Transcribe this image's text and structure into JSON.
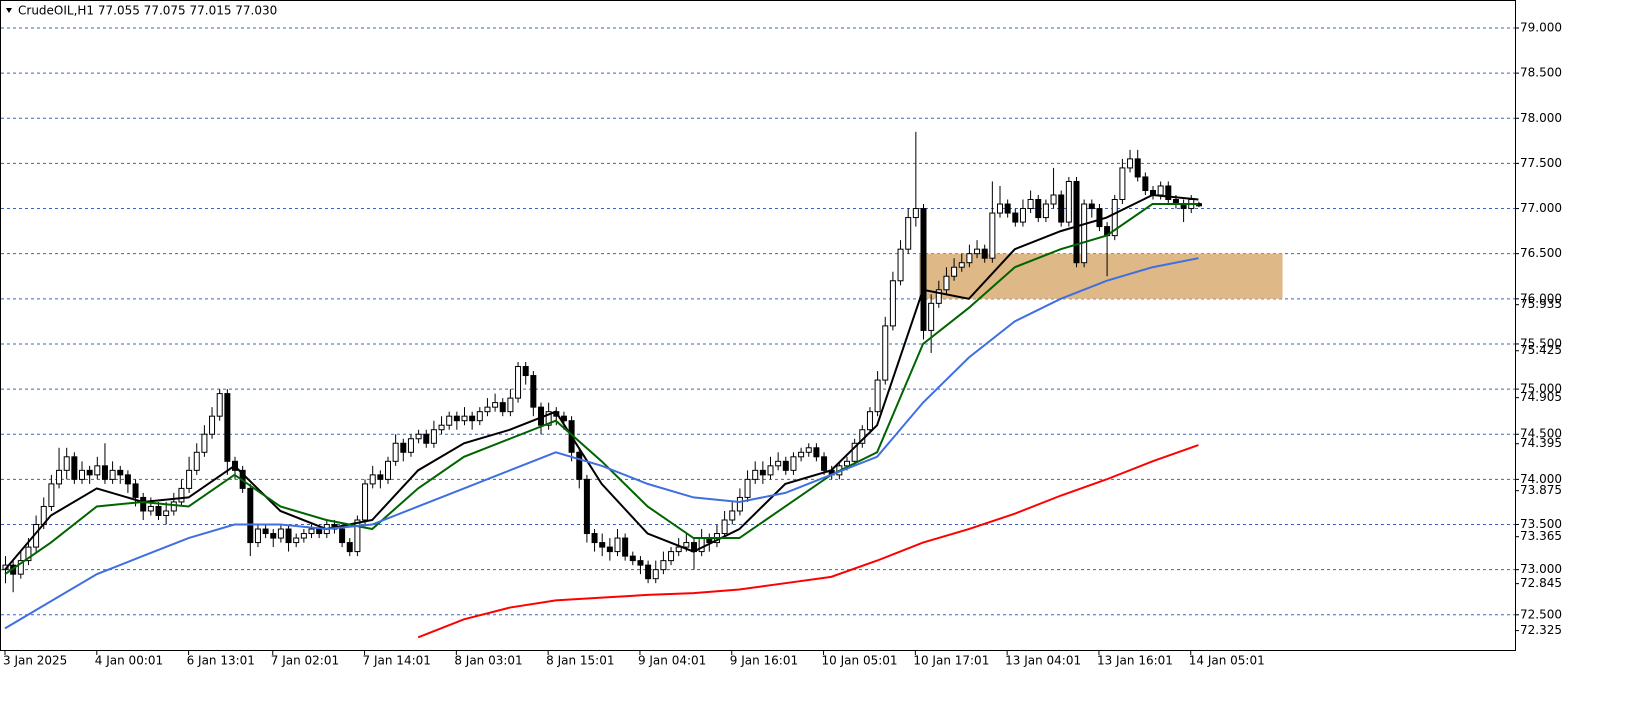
{
  "chart_data": {
    "type": "candlestick",
    "title": "CrudeOIL,H1  77.055 77.075 77.015 77.030",
    "ylim": [
      72.11,
      79.31
    ],
    "xlim": [
      0,
      197
    ],
    "yticks": [
      {
        "value": 72.5,
        "label": "72.500"
      },
      {
        "value": 73,
        "label": "73.000"
      },
      {
        "value": 73.5,
        "label": "73.500"
      },
      {
        "value": 74,
        "label": "74.000"
      },
      {
        "value": 74.5,
        "label": "74.500"
      },
      {
        "value": 75,
        "label": "75.000"
      },
      {
        "value": 75.5,
        "label": "75.500"
      },
      {
        "value": 76,
        "label": "76.000"
      },
      {
        "value": 76.5,
        "label": "76.500"
      },
      {
        "value": 77,
        "label": "77.000"
      },
      {
        "value": 77.5,
        "label": "77.500"
      },
      {
        "value": 78,
        "label": "78.000"
      },
      {
        "value": 78.5,
        "label": "78.500"
      },
      {
        "value": 79,
        "label": "79.000"
      }
    ],
    "yticks_extra": [
      72.325,
      72.845,
      73.365,
      73.875,
      74.395,
      74.905,
      75.425,
      75.935
    ],
    "grid": true,
    "xticks": [
      {
        "value": 0,
        "label": "3 Jan 2025"
      },
      {
        "value": 12,
        "label": "4 Jan 00:01"
      },
      {
        "value": 24,
        "label": "6 Jan 13:01"
      },
      {
        "value": 35,
        "label": "7 Jan 02:01"
      },
      {
        "value": 47,
        "label": "7 Jan 14:01"
      },
      {
        "value": 59,
        "label": "8 Jan 03:01"
      },
      {
        "value": 71,
        "label": "8 Jan 15:01"
      },
      {
        "value": 83,
        "label": "9 Jan 04:01"
      },
      {
        "value": 95,
        "label": "9 Jan 16:01"
      },
      {
        "value": 107,
        "label": "10 Jan 05:01"
      },
      {
        "value": 119,
        "label": "10 Jan 17:01"
      },
      {
        "value": 131,
        "label": "13 Jan 04:01"
      },
      {
        "value": 143,
        "label": "13 Jan 16:01"
      },
      {
        "value": 155,
        "label": "14 Jan 05:01"
      }
    ],
    "zone": {
      "x": [
        119.5,
        167
      ],
      "y": [
        76.0,
        76.5
      ],
      "color": "#deb887"
    },
    "ohlc": [
      [
        73.0,
        73.15,
        72.85,
        73.05
      ],
      [
        73.05,
        73.1,
        72.75,
        72.95
      ],
      [
        72.95,
        73.2,
        72.9,
        73.1
      ],
      [
        73.1,
        73.35,
        73.05,
        73.25
      ],
      [
        73.25,
        73.6,
        73.2,
        73.5
      ],
      [
        73.5,
        73.8,
        73.45,
        73.7
      ],
      [
        73.7,
        74.05,
        73.65,
        73.95
      ],
      [
        73.95,
        74.35,
        73.9,
        74.1
      ],
      [
        74.1,
        74.35,
        74.0,
        74.25
      ],
      [
        74.25,
        74.3,
        73.95,
        74.0
      ],
      [
        74.0,
        74.2,
        73.95,
        74.1
      ],
      [
        74.1,
        74.15,
        73.95,
        74.05
      ],
      [
        74.05,
        74.25,
        74.0,
        74.15
      ],
      [
        74.15,
        74.4,
        73.95,
        74.0
      ],
      [
        74.0,
        74.2,
        73.95,
        74.1
      ],
      [
        74.1,
        74.15,
        73.95,
        74.05
      ],
      [
        74.05,
        74.1,
        73.85,
        73.95
      ],
      [
        73.95,
        74.0,
        73.7,
        73.8
      ],
      [
        73.8,
        73.85,
        73.55,
        73.65
      ],
      [
        73.65,
        73.8,
        73.6,
        73.7
      ],
      [
        73.7,
        73.75,
        73.55,
        73.6
      ],
      [
        73.6,
        73.75,
        73.5,
        73.65
      ],
      [
        73.65,
        73.85,
        73.6,
        73.75
      ],
      [
        73.75,
        74.0,
        73.7,
        73.9
      ],
      [
        73.9,
        74.25,
        73.85,
        74.1
      ],
      [
        74.1,
        74.4,
        74.05,
        74.3
      ],
      [
        74.3,
        74.6,
        74.25,
        74.5
      ],
      [
        74.5,
        74.8,
        74.45,
        74.7
      ],
      [
        74.7,
        75.0,
        74.65,
        74.95
      ],
      [
        74.95,
        75.0,
        74.05,
        74.2
      ],
      [
        74.2,
        74.25,
        74.0,
        74.1
      ],
      [
        74.1,
        74.15,
        73.85,
        73.9
      ],
      [
        73.9,
        73.95,
        73.15,
        73.3
      ],
      [
        73.3,
        73.5,
        73.25,
        73.45
      ],
      [
        73.45,
        73.5,
        73.35,
        73.4
      ],
      [
        73.4,
        73.45,
        73.25,
        73.35
      ],
      [
        73.35,
        73.5,
        73.3,
        73.45
      ],
      [
        73.45,
        73.5,
        73.2,
        73.3
      ],
      [
        73.3,
        73.4,
        73.25,
        73.35
      ],
      [
        73.35,
        73.45,
        73.3,
        73.4
      ],
      [
        73.4,
        73.5,
        73.35,
        73.45
      ],
      [
        73.45,
        73.5,
        73.35,
        73.4
      ],
      [
        73.4,
        73.55,
        73.35,
        73.5
      ],
      [
        73.5,
        73.55,
        73.4,
        73.45
      ],
      [
        73.45,
        73.5,
        73.25,
        73.3
      ],
      [
        73.3,
        73.35,
        73.15,
        73.2
      ],
      [
        73.2,
        73.6,
        73.15,
        73.55
      ],
      [
        73.55,
        74.0,
        73.5,
        73.95
      ],
      [
        73.95,
        74.15,
        73.9,
        74.05
      ],
      [
        74.05,
        74.1,
        73.9,
        74.0
      ],
      [
        74.0,
        74.25,
        73.95,
        74.2
      ],
      [
        74.2,
        74.5,
        74.15,
        74.4
      ],
      [
        74.4,
        74.45,
        74.2,
        74.3
      ],
      [
        74.3,
        74.5,
        74.25,
        74.45
      ],
      [
        74.45,
        74.55,
        74.4,
        74.5
      ],
      [
        74.5,
        74.55,
        74.35,
        74.4
      ],
      [
        74.4,
        74.65,
        74.35,
        74.55
      ],
      [
        74.55,
        74.7,
        74.5,
        74.6
      ],
      [
        74.6,
        74.75,
        74.55,
        74.7
      ],
      [
        74.7,
        74.75,
        74.55,
        74.65
      ],
      [
        74.65,
        74.8,
        74.6,
        74.7
      ],
      [
        74.7,
        74.75,
        74.55,
        74.65
      ],
      [
        74.65,
        74.8,
        74.6,
        74.75
      ],
      [
        74.75,
        74.9,
        74.7,
        74.8
      ],
      [
        74.8,
        74.95,
        74.75,
        74.85
      ],
      [
        74.85,
        74.9,
        74.7,
        74.75
      ],
      [
        74.75,
        75.0,
        74.7,
        74.9
      ],
      [
        74.9,
        75.3,
        74.85,
        75.25
      ],
      [
        75.25,
        75.3,
        75.05,
        75.15
      ],
      [
        75.15,
        75.2,
        74.7,
        74.8
      ],
      [
        74.8,
        74.85,
        74.5,
        74.6
      ],
      [
        74.6,
        74.85,
        74.55,
        74.75
      ],
      [
        74.75,
        74.8,
        74.6,
        74.7
      ],
      [
        74.7,
        74.75,
        74.55,
        74.65
      ],
      [
        74.65,
        74.7,
        74.2,
        74.3
      ],
      [
        74.3,
        74.35,
        73.9,
        74.0
      ],
      [
        74.0,
        74.05,
        73.3,
        73.4
      ],
      [
        73.4,
        73.45,
        73.2,
        73.3
      ],
      [
        73.3,
        73.4,
        73.15,
        73.25
      ],
      [
        73.25,
        73.35,
        73.1,
        73.2
      ],
      [
        73.2,
        73.45,
        73.15,
        73.35
      ],
      [
        73.35,
        73.4,
        73.1,
        73.15
      ],
      [
        73.15,
        73.2,
        73.05,
        73.1
      ],
      [
        73.1,
        73.15,
        72.95,
        73.05
      ],
      [
        73.05,
        73.1,
        72.85,
        72.9
      ],
      [
        72.9,
        73.1,
        72.85,
        73.0
      ],
      [
        73.0,
        73.2,
        72.95,
        73.1
      ],
      [
        73.1,
        73.25,
        73.05,
        73.2
      ],
      [
        73.2,
        73.35,
        73.15,
        73.25
      ],
      [
        73.25,
        73.4,
        73.2,
        73.3
      ],
      [
        73.3,
        73.35,
        73.0,
        73.2
      ],
      [
        73.2,
        73.45,
        73.15,
        73.35
      ],
      [
        73.35,
        73.4,
        73.2,
        73.3
      ],
      [
        73.3,
        73.5,
        73.25,
        73.4
      ],
      [
        73.4,
        73.65,
        73.35,
        73.55
      ],
      [
        73.55,
        73.75,
        73.5,
        73.65
      ],
      [
        73.65,
        73.9,
        73.6,
        73.8
      ],
      [
        73.8,
        74.1,
        73.75,
        74.0
      ],
      [
        74.0,
        74.2,
        73.95,
        74.1
      ],
      [
        74.1,
        74.2,
        73.95,
        74.05
      ],
      [
        74.05,
        74.25,
        74.0,
        74.15
      ],
      [
        74.15,
        74.3,
        74.1,
        74.2
      ],
      [
        74.2,
        74.25,
        74.05,
        74.1
      ],
      [
        74.1,
        74.3,
        74.05,
        74.25
      ],
      [
        74.25,
        74.35,
        74.2,
        74.3
      ],
      [
        74.3,
        74.4,
        74.25,
        74.35
      ],
      [
        74.35,
        74.4,
        74.2,
        74.25
      ],
      [
        74.25,
        74.3,
        74.05,
        74.1
      ],
      [
        74.1,
        74.15,
        74.0,
        74.05
      ],
      [
        74.05,
        74.2,
        74.0,
        74.15
      ],
      [
        74.15,
        74.25,
        74.1,
        74.2
      ],
      [
        74.2,
        74.45,
        74.15,
        74.4
      ],
      [
        74.4,
        74.6,
        74.35,
        74.55
      ],
      [
        74.55,
        74.8,
        74.5,
        74.75
      ],
      [
        74.75,
        75.2,
        74.7,
        75.1
      ],
      [
        75.1,
        75.8,
        75.05,
        75.7
      ],
      [
        75.7,
        76.3,
        75.65,
        76.2
      ],
      [
        76.2,
        76.65,
        76.15,
        76.55
      ],
      [
        76.55,
        77.0,
        76.5,
        76.9
      ],
      [
        76.9,
        77.85,
        76.8,
        77.0
      ],
      [
        77.0,
        77.05,
        75.55,
        75.65
      ],
      [
        75.65,
        76.05,
        75.4,
        75.95
      ],
      [
        75.95,
        76.2,
        75.9,
        76.1
      ],
      [
        76.1,
        76.35,
        76.05,
        76.25
      ],
      [
        76.25,
        76.45,
        76.2,
        76.35
      ],
      [
        76.35,
        76.5,
        76.3,
        76.4
      ],
      [
        76.4,
        76.6,
        76.35,
        76.5
      ],
      [
        76.5,
        76.65,
        76.45,
        76.55
      ],
      [
        76.55,
        76.6,
        76.4,
        76.45
      ],
      [
        76.45,
        77.3,
        76.4,
        76.95
      ],
      [
        76.95,
        77.25,
        76.9,
        77.05
      ],
      [
        77.05,
        77.1,
        76.9,
        76.95
      ],
      [
        76.95,
        77.0,
        76.8,
        76.85
      ],
      [
        76.85,
        77.1,
        76.8,
        77.0
      ],
      [
        77.0,
        77.2,
        76.95,
        77.1
      ],
      [
        77.1,
        77.15,
        76.85,
        76.9
      ],
      [
        76.9,
        77.1,
        76.85,
        77.05
      ],
      [
        77.05,
        77.45,
        77.0,
        77.15
      ],
      [
        77.15,
        77.2,
        76.8,
        76.85
      ],
      [
        76.85,
        77.35,
        76.8,
        77.3
      ],
      [
        77.3,
        77.35,
        76.35,
        76.4
      ],
      [
        76.4,
        77.1,
        76.35,
        77.05
      ],
      [
        77.05,
        77.1,
        76.9,
        77.0
      ],
      [
        77.0,
        77.05,
        76.75,
        76.8
      ],
      [
        76.8,
        76.85,
        76.25,
        76.7
      ],
      [
        76.7,
        77.15,
        76.65,
        77.1
      ],
      [
        77.1,
        77.55,
        77.05,
        77.45
      ],
      [
        77.45,
        77.65,
        77.4,
        77.55
      ],
      [
        77.55,
        77.65,
        77.3,
        77.35
      ],
      [
        77.35,
        77.4,
        77.15,
        77.2
      ],
      [
        77.2,
        77.25,
        77.1,
        77.15
      ],
      [
        77.15,
        77.3,
        77.1,
        77.25
      ],
      [
        77.25,
        77.3,
        77.05,
        77.1
      ],
      [
        77.1,
        77.15,
        77.0,
        77.05
      ],
      [
        77.05,
        77.1,
        76.85,
        77.0
      ],
      [
        77.0,
        77.15,
        76.95,
        77.1
      ],
      [
        77.055,
        77.075,
        77.015,
        77.03
      ]
    ],
    "ma_x": [
      0,
      6,
      12,
      18,
      24,
      30,
      36,
      42,
      48,
      54,
      60,
      66,
      72,
      78,
      84,
      90,
      96,
      102,
      108,
      114,
      120,
      126,
      132,
      138,
      144,
      150,
      156
    ],
    "lines": [
      {
        "color": "#000000",
        "values": [
          73.0,
          73.6,
          73.9,
          73.75,
          73.8,
          74.15,
          73.65,
          73.45,
          73.55,
          74.1,
          74.4,
          74.55,
          74.75,
          73.95,
          73.4,
          73.2,
          73.45,
          73.95,
          74.1,
          74.6,
          76.1,
          76.0,
          76.55,
          76.75,
          76.9,
          77.15,
          77.1
        ]
      },
      {
        "color": "#006400",
        "values": [
          72.95,
          73.3,
          73.7,
          73.75,
          73.7,
          74.05,
          73.7,
          73.55,
          73.45,
          73.9,
          74.25,
          74.45,
          74.65,
          74.2,
          73.7,
          73.35,
          73.35,
          73.7,
          74.05,
          74.3,
          75.5,
          75.9,
          76.35,
          76.55,
          76.7,
          77.05,
          77.05
        ]
      },
      {
        "color": "#3f6fe0",
        "values": [
          72.35,
          72.65,
          72.95,
          73.15,
          73.35,
          73.5,
          73.5,
          73.45,
          73.5,
          73.7,
          73.9,
          74.1,
          74.3,
          74.15,
          73.95,
          73.8,
          73.75,
          73.85,
          74.05,
          74.25,
          74.85,
          75.35,
          75.75,
          76.0,
          76.2,
          76.35,
          76.45
        ]
      },
      {
        "color": "#ff0000",
        "values": [
          null,
          null,
          null,
          null,
          null,
          null,
          null,
          null,
          null,
          72.25,
          72.45,
          72.58,
          72.66,
          72.69,
          72.72,
          72.74,
          72.78,
          72.85,
          72.92,
          73.1,
          73.3,
          73.45,
          73.62,
          73.82,
          74.0,
          74.2,
          74.38
        ]
      }
    ]
  }
}
